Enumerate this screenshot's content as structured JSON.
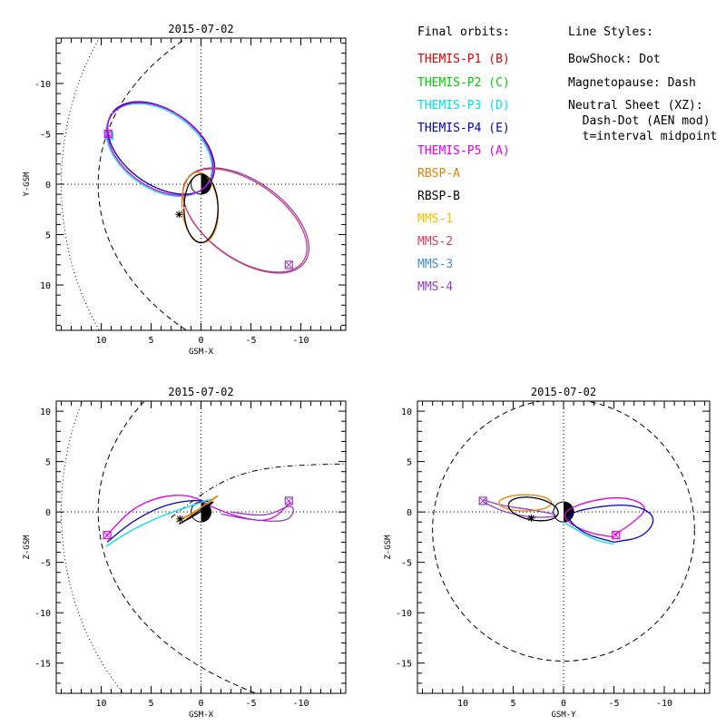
{
  "legend": {
    "orbits_title": "Final orbits:",
    "orbits": [
      {
        "label": "THEMIS-P1 (B)",
        "color": "#e00000"
      },
      {
        "label": "THEMIS-P2 (C)",
        "color": "#00d000"
      },
      {
        "label": "THEMIS-P3 (D)",
        "color": "#00e0e0"
      },
      {
        "label": "THEMIS-P4 (E)",
        "color": "#0000c0"
      },
      {
        "label": "THEMIS-P5 (A)",
        "color": "#e000e0"
      },
      {
        "label": "RBSP-A",
        "color": "#e88000"
      },
      {
        "label": "RBSP-B",
        "color": "#000000"
      },
      {
        "label": "MMS-1",
        "color": "#f0c000"
      },
      {
        "label": "MMS-2",
        "color": "#d04060"
      },
      {
        "label": "MMS-3",
        "color": "#4090d0"
      },
      {
        "label": "MMS-4",
        "color": "#9040c0"
      }
    ],
    "styles_title": "Line Styles:",
    "styles": [
      "BowShock: Dot",
      "Magnetopause: Dash",
      "Neutral Sheet (XZ):",
      "  Dash-Dot (AEN mod)",
      "  t=interval midpoint"
    ]
  },
  "chart_data": [
    {
      "type": "line",
      "title": "2015-07-02",
      "xlabel": "GSM-X",
      "ylabel": "Y-GSM",
      "xlim": [
        14.5,
        -14.5
      ],
      "ylim": [
        14.5,
        -14.5
      ],
      "xticks": [
        10,
        5,
        0,
        -5,
        -10
      ],
      "yticks": [
        -10,
        -5,
        0,
        5,
        10
      ],
      "boundaries": {
        "bowshock": "dot",
        "magnetopause": "dash"
      },
      "series": [
        {
          "name": "THEMIS-P3 (D)",
          "shape": "ellipse",
          "center": [
            4.2,
            -3.4
          ],
          "semi_axes": [
            5.9,
            3.8
          ],
          "tilt_deg": -35,
          "color": "#00e0e0",
          "marker": {
            "x": 9.2,
            "y": -4.8
          }
        },
        {
          "name": "THEMIS-P4 (E)",
          "shape": "ellipse",
          "center": [
            4.0,
            -3.6
          ],
          "semi_axes": [
            6.0,
            3.7
          ],
          "tilt_deg": -35,
          "color": "#0000c0"
        },
        {
          "name": "THEMIS-P5 (A)",
          "shape": "ellipse",
          "center": [
            4.1,
            -3.5
          ],
          "semi_axes": [
            5.9,
            3.8
          ],
          "tilt_deg": -35,
          "color": "#e000e0",
          "marker": {
            "x": 9.3,
            "y": -5.0
          }
        },
        {
          "name": "MMS-4",
          "shape": "ellipse",
          "center": [
            -4.5,
            3.6
          ],
          "semi_axes": [
            7.2,
            3.9
          ],
          "tilt_deg": -35,
          "color": "#9040c0",
          "marker": {
            "x": -8.8,
            "y": 8.0
          }
        },
        {
          "name": "MMS-2",
          "shape": "ellipse",
          "center": [
            -4.4,
            3.6
          ],
          "semi_axes": [
            7.1,
            3.8
          ],
          "tilt_deg": -35,
          "color": "#d04060"
        },
        {
          "name": "RBSP-A",
          "shape": "ellipse",
          "center": [
            0.1,
            2.3
          ],
          "semi_axes": [
            1.8,
            3.5
          ],
          "tilt_deg": 5,
          "color": "#e88000"
        },
        {
          "name": "RBSP-B",
          "shape": "ellipse",
          "center": [
            0.0,
            2.4
          ],
          "semi_axes": [
            1.7,
            3.4
          ],
          "tilt_deg": 0,
          "color": "#000000"
        }
      ],
      "star": {
        "x": 2.2,
        "y": 3.0
      }
    },
    {
      "type": "line",
      "title": "2015-07-02",
      "xlabel": "GSM-X",
      "ylabel": "Z-GSM",
      "xlim": [
        14.5,
        -14.5
      ],
      "ylim": [
        -18,
        11
      ],
      "xticks": [
        10,
        5,
        0,
        -5,
        -10
      ],
      "yticks": [
        10,
        5,
        0,
        -5,
        -10,
        -15
      ],
      "boundaries": {
        "bowshock": "dot",
        "magnetopause": "dash",
        "neutral_sheet": "dashdot"
      },
      "series": [
        {
          "name": "THEMIS-P5 (A)",
          "points": [
            [
              9.5,
              -2.4
            ],
            [
              7,
              0.3
            ],
            [
              4,
              1.6
            ],
            [
              1,
              1.7
            ],
            [
              -1,
              0.5
            ],
            [
              -4,
              -0.6
            ],
            [
              -7,
              -1.0
            ],
            [
              -9,
              1.0
            ]
          ],
          "color": "#e000e0",
          "marker": {
            "x": 9.4,
            "y": -2.3
          }
        },
        {
          "name": "THEMIS-P4 (E)",
          "points": [
            [
              9.4,
              -3.0
            ],
            [
              7,
              -1.0
            ],
            [
              4,
              0.6
            ],
            [
              1,
              1.2
            ],
            [
              -1,
              1.0
            ]
          ],
          "color": "#0000c0"
        },
        {
          "name": "THEMIS-P3 (D)",
          "points": [
            [
              9.5,
              -3.4
            ],
            [
              7,
              -1.8
            ],
            [
              4,
              -0.4
            ],
            [
              1,
              0.6
            ],
            [
              -1,
              1.3
            ]
          ],
          "color": "#00e0e0"
        },
        {
          "name": "MMS-4",
          "points": [
            [
              -3,
              0.0
            ],
            [
              -5,
              -0.3
            ],
            [
              -7,
              -0.3
            ],
            [
              -9,
              0.8
            ],
            [
              -9.4,
              0.0
            ],
            [
              -8.5,
              -1.0
            ],
            [
              -5,
              -0.8
            ],
            [
              -2,
              -0.2
            ]
          ],
          "color": "#9040c0",
          "marker": {
            "x": -8.8,
            "y": 1.1
          }
        },
        {
          "name": "RBSP-A",
          "points": [
            [
              2.5,
              -1.0
            ],
            [
              0,
              0.4
            ],
            [
              -2,
              1.8
            ],
            [
              -1,
              1.2
            ],
            [
              1,
              -0.3
            ],
            [
              2.5,
              -1.0
            ]
          ],
          "color": "#e88000"
        },
        {
          "name": "RBSP-B",
          "points": [
            [
              2.2,
              -1.2
            ],
            [
              0,
              0.0
            ],
            [
              -1.5,
              1.2
            ],
            [
              -0.5,
              0.6
            ],
            [
              1.5,
              -0.8
            ],
            [
              2.2,
              -1.2
            ]
          ],
          "color": "#000000"
        }
      ],
      "star": {
        "x": 2.1,
        "y": -0.7
      }
    },
    {
      "type": "line",
      "title": "2015-07-02",
      "xlabel": "GSM-Y",
      "ylabel": "Z-GSM",
      "xlim": [
        14.5,
        -14.5
      ],
      "ylim": [
        -18,
        11
      ],
      "xticks": [
        10,
        5,
        0,
        -5,
        -10
      ],
      "yticks": [
        10,
        5,
        0,
        -5,
        -10,
        -15
      ],
      "boundaries": {
        "magnetopause": "dash"
      },
      "series": [
        {
          "name": "THEMIS-P5 (A)",
          "points": [
            [
              -5,
              -2.3
            ],
            [
              -7,
              -1.0
            ],
            [
              -8.5,
              0.5
            ],
            [
              -6,
              1.6
            ],
            [
              -2,
              1.0
            ],
            [
              0.5,
              -0.3
            ],
            [
              -2,
              -2.0
            ],
            [
              -5,
              -2.5
            ]
          ],
          "color": "#e000e0",
          "marker": {
            "x": -5.2,
            "y": -2.3
          }
        },
        {
          "name": "THEMIS-P4 (E)",
          "points": [
            [
              -5,
              -3.0
            ],
            [
              -8,
              -2.5
            ],
            [
              -9.3,
              -0.5
            ],
            [
              -7,
              0.8
            ],
            [
              -3,
              0.5
            ],
            [
              0,
              -0.3
            ],
            [
              -2,
              -2.2
            ],
            [
              -5,
              -3.0
            ]
          ],
          "color": "#0000c0"
        },
        {
          "name": "THEMIS-P3 (D)",
          "points": [
            [
              -5,
              -3.2
            ],
            [
              -3,
              -2.8
            ],
            [
              0,
              -1.0
            ]
          ],
          "color": "#00e0e0"
        },
        {
          "name": "MMS-4",
          "points": [
            [
              8.0,
              1.0
            ],
            [
              6,
              0.0
            ],
            [
              3,
              -0.6
            ],
            [
              0,
              -0.4
            ],
            [
              3,
              0.2
            ],
            [
              6,
              0.6
            ],
            [
              8.0,
              1.2
            ]
          ],
          "color": "#9040c0",
          "marker": {
            "x": 8.0,
            "y": 1.1
          }
        },
        {
          "name": "RBSP-A",
          "shape": "ellipse",
          "center": [
            3.8,
            0.9
          ],
          "semi_axes": [
            2.6,
            0.8
          ],
          "tilt_deg": 0,
          "color": "#e88000"
        },
        {
          "name": "RBSP-B",
          "shape": "ellipse",
          "center": [
            3.0,
            0.3
          ],
          "semi_axes": [
            2.5,
            1.1
          ],
          "tilt_deg": 10,
          "color": "#000000"
        }
      ],
      "star": {
        "x": 3.2,
        "y": -0.6
      }
    }
  ]
}
